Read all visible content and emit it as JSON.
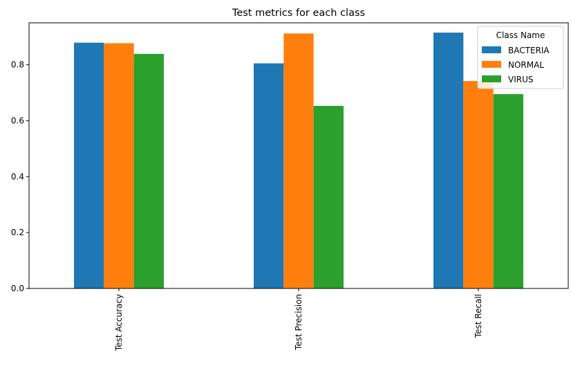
{
  "chart_data": {
    "type": "bar",
    "title": "Test metrics for each class",
    "xlabel": "",
    "ylabel": "",
    "categories": [
      "Test Accuracy",
      "Test Precision",
      "Test Recall"
    ],
    "series": [
      {
        "name": "BACTERIA",
        "color": "#1f77b4",
        "values": [
          0.879,
          0.805,
          0.915
        ]
      },
      {
        "name": "NORMAL",
        "color": "#ff7f0e",
        "values": [
          0.877,
          0.912,
          0.742
        ]
      },
      {
        "name": "VIRUS",
        "color": "#2ca02c",
        "values": [
          0.839,
          0.653,
          0.695
        ]
      }
    ],
    "ylim": [
      0,
      0.95
    ],
    "yticks": [
      0.0,
      0.2,
      0.4,
      0.6,
      0.8
    ],
    "ytick_labels": [
      "0.0",
      "0.2",
      "0.4",
      "0.6",
      "0.8"
    ],
    "grid": false,
    "legend": {
      "title": "Class Name",
      "placement": "top-right"
    }
  }
}
